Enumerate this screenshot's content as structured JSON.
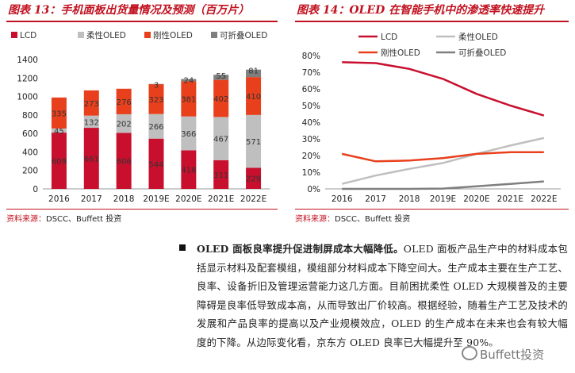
{
  "figures": [
    {
      "title": "图表 13：手机面板出货量情况及预测（百万片）",
      "source_label": "资料来源：",
      "source_text": "DSCC、Buffett 投资"
    },
    {
      "title": "图表 14：OLED 在智能手机中的渗透率快速提升",
      "source_label": "资料来源：",
      "source_text": "DSCC、Buffett 投资"
    }
  ],
  "paragraph": {
    "lead": "OLED 面板良率提升促进制屏成本大幅降低。",
    "body": "OLED 面板产品生产中的材料成本包括显示材料及配套模组，模组部分材料成本下降空间大。生产成本主要在生产工艺、良率、设备折旧及管理运营能力这几方面。目前困扰柔性 OLED 大规模普及的主要障碍是良率低导致成本高，从而导致出厂价较高。根据经验，随着生产工艺及技术的发展和产品良率的提高以及产业规模效应，OLED 的生产成本在未来也会有较大幅度的下降。从边际变化看，京东方 OLED 良率已大幅提升至 90%。"
  },
  "watermark": "Buffett投资",
  "chart_data": [
    {
      "type": "bar",
      "stacked": true,
      "categories": [
        "2016",
        "2017",
        "2018",
        "2019E",
        "2020E",
        "2021E",
        "2022E"
      ],
      "series": [
        {
          "name": "LCD",
          "color": "#c8102e",
          "values": [
            609,
            661,
            606,
            544,
            418,
            311,
            229
          ]
        },
        {
          "name": "柔性OLED",
          "color": "#bfbfbf",
          "values": [
            45,
            132,
            202,
            266,
            366,
            467,
            571
          ]
        },
        {
          "name": "刚性OLED",
          "color": "#e8401c",
          "values": [
            335,
            273,
            276,
            323,
            381,
            402,
            410
          ]
        },
        {
          "name": "可折叠OLED",
          "color": "#7f7f7f",
          "values": [
            0,
            0,
            0,
            3,
            24,
            55,
            81
          ]
        }
      ],
      "data_labels": {
        "LCD": [
          "609",
          "661",
          "606",
          "544",
          "418",
          "311",
          "229"
        ],
        "柔性OLED": [
          "45",
          "132",
          "202",
          "266",
          "366",
          "467",
          "571"
        ],
        "刚性OLED": [
          "335",
          "273",
          "276",
          "323",
          "381",
          "402",
          "410"
        ],
        "可折叠OLED": [
          "",
          "",
          "",
          "3",
          "24",
          "55",
          "81"
        ]
      },
      "ylim": [
        0,
        1400
      ],
      "yticks": [
        "0",
        "200",
        "400",
        "600",
        "800",
        "1000",
        "1200",
        "1400"
      ],
      "legend": "top-left"
    },
    {
      "type": "line",
      "categories": [
        "2016",
        "2017",
        "2018",
        "2019E",
        "2020E",
        "2021E",
        "2022E"
      ],
      "series": [
        {
          "name": "LCD",
          "color": "#c8102e",
          "values": [
            76,
            75.5,
            72,
            66,
            57,
            50,
            44
          ]
        },
        {
          "name": "柔性OLED",
          "color": "#bfbfbf",
          "values": [
            3,
            8,
            12,
            15.5,
            21,
            26,
            30.5
          ]
        },
        {
          "name": "刚性OLED",
          "color": "#e8401c",
          "values": [
            21,
            16.5,
            17,
            18.5,
            21,
            22,
            22
          ]
        },
        {
          "name": "可折叠OLED",
          "color": "#7f7f7f",
          "values": [
            0,
            0,
            0,
            0.2,
            1.5,
            3,
            4.5
          ]
        }
      ],
      "ylim": [
        0,
        80
      ],
      "yticks": [
        "0%",
        "10%",
        "20%",
        "30%",
        "40%",
        "50%",
        "60%",
        "70%",
        "80%"
      ],
      "legend": "top"
    }
  ]
}
